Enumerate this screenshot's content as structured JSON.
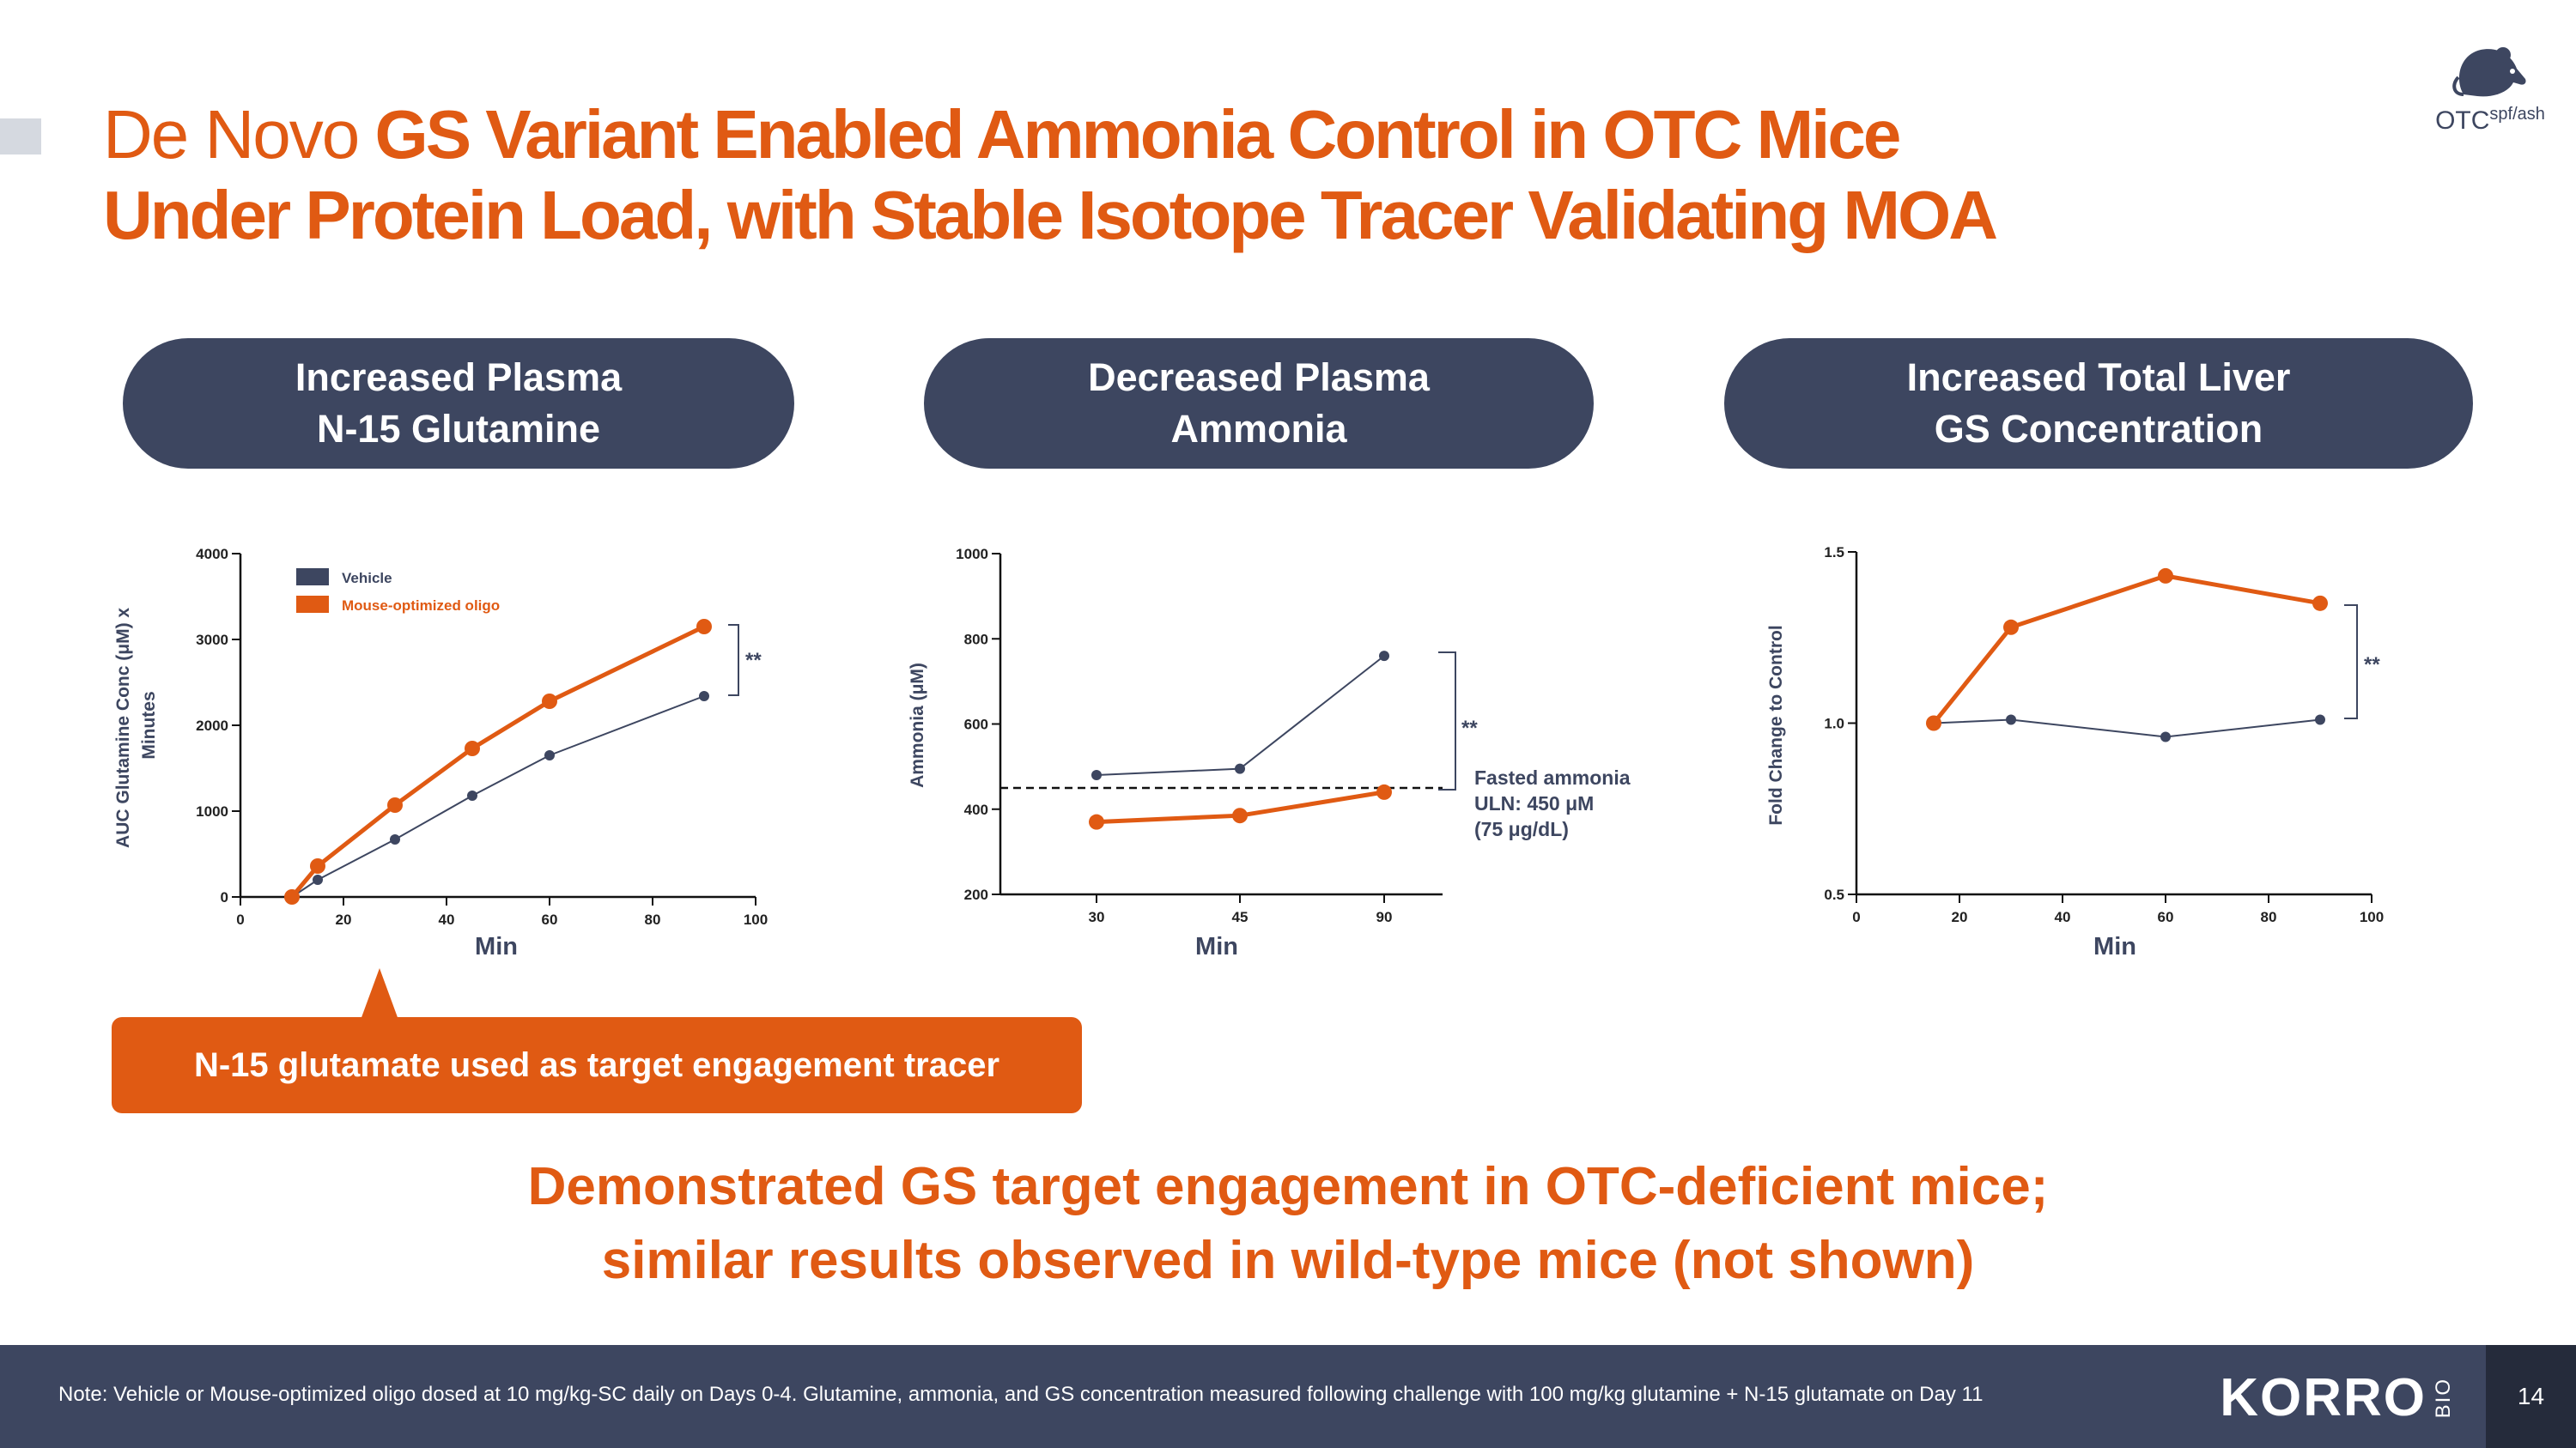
{
  "title": {
    "light": "De Novo",
    "line1": "GS Variant Enabled Ammonia Control in OTC Mice",
    "line2": "Under Protein Load, with Stable Isotope Tracer Validating MOA"
  },
  "logo": {
    "main": "OTC",
    "sup": "spf/ash"
  },
  "pills": [
    {
      "line1": "Increased Plasma",
      "line2": "N-15 Glutamine"
    },
    {
      "line1": "Decreased Plasma",
      "line2": "Ammonia"
    },
    {
      "line1": "Increased Total Liver",
      "line2": "GS Concentration"
    }
  ],
  "colors": {
    "vehicle": "#3d4660",
    "oligo": "#e05a13",
    "accent": "#e05a13",
    "navy": "#3d4660"
  },
  "chart_data": [
    {
      "type": "line",
      "ylabel_line1": "AUC Glutamine Conc (μM) x",
      "ylabel_line2": "Minutes",
      "xlabel": "Min",
      "xlim": [
        0,
        100
      ],
      "ylim": [
        0,
        4000
      ],
      "xticks": [
        0,
        20,
        40,
        60,
        80,
        100
      ],
      "yticks": [
        0,
        1000,
        2000,
        3000,
        4000
      ],
      "legend": [
        "Vehicle",
        "Mouse-optimized oligo"
      ],
      "significance": "**",
      "series": [
        {
          "name": "Vehicle",
          "x": [
            10,
            15,
            30,
            45,
            60,
            90
          ],
          "y": [
            0,
            200,
            670,
            1180,
            1650,
            2340
          ]
        },
        {
          "name": "Mouse-optimized oligo",
          "x": [
            10,
            15,
            30,
            45,
            60,
            90
          ],
          "y": [
            0,
            360,
            1070,
            1730,
            2280,
            3150
          ]
        }
      ]
    },
    {
      "type": "line",
      "ylabel": "Ammonia (μM)",
      "xlabel": "Min",
      "categories": [
        "30",
        "45",
        "90"
      ],
      "ylim": [
        200,
        1000
      ],
      "yticks": [
        200,
        400,
        600,
        800,
        1000
      ],
      "significance": "**",
      "reference_line": {
        "value": 450,
        "label_lines": [
          "Fasted ammonia",
          "ULN: 450 μM",
          "(75 μg/dL)"
        ]
      },
      "series": [
        {
          "name": "Vehicle",
          "values": [
            480,
            495,
            760
          ]
        },
        {
          "name": "Mouse-optimized oligo",
          "values": [
            370,
            385,
            440
          ]
        }
      ]
    },
    {
      "type": "line",
      "ylabel": "Fold Change to Control",
      "xlabel": "Min",
      "xlim": [
        0,
        100
      ],
      "ylim": [
        0.5,
        1.5
      ],
      "xticks": [
        0,
        20,
        40,
        60,
        80,
        100
      ],
      "yticks": [
        0.5,
        1.0,
        1.5
      ],
      "ytick_labels": [
        "0.5",
        "1.0",
        "1.5"
      ],
      "significance": "**",
      "series": [
        {
          "name": "Vehicle",
          "x": [
            15,
            30,
            60,
            90
          ],
          "y": [
            1.0,
            1.01,
            0.96,
            1.01
          ]
        },
        {
          "name": "Mouse-optimized oligo",
          "x": [
            15,
            30,
            60,
            90
          ],
          "y": [
            1.0,
            1.28,
            1.43,
            1.35
          ]
        }
      ]
    }
  ],
  "callout": "N-15 glutamate used as target engagement tracer",
  "conclusion": {
    "line1": "Demonstrated GS target engagement in OTC-deficient mice;",
    "line2": "similar results observed in wild-type mice (not shown)"
  },
  "footer": {
    "note": "Note: Vehicle or Mouse-optimized oligo dosed at 10 mg/kg-SC daily on Days 0-4. Glutamine, ammonia, and GS concentration measured following challenge with 100 mg/kg glutamine + N-15 glutamate on Day 11",
    "logo": "KORRO",
    "logo_suffix": "BIO",
    "page": "14"
  }
}
